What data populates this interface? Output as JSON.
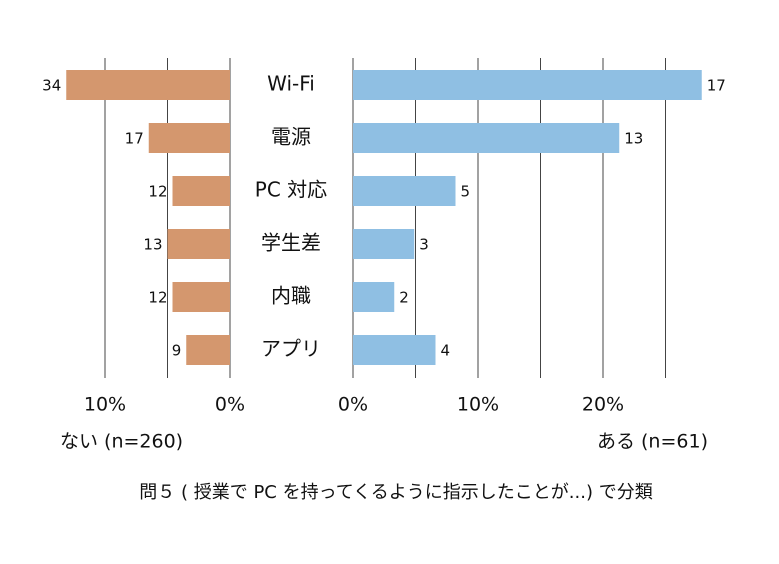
{
  "chart_data": {
    "type": "butterfly",
    "title": "問５ ( 授業で PC を持ってくるように指示したことが...) で分類",
    "categories": [
      "Wi-Fi",
      "電源",
      "PC 対応",
      "学生差",
      "内職",
      "アプリ"
    ],
    "series": [
      {
        "name": "ない (n=260)",
        "color": "#d4976e",
        "side": "left",
        "values": [
          13.1,
          6.5,
          4.6,
          5.0,
          4.6,
          3.5
        ],
        "counts": [
          34,
          17,
          12,
          13,
          12,
          9
        ],
        "xlim": [
          0,
          15
        ],
        "xticks": [
          {
            "value": 0,
            "label": "0%"
          },
          {
            "value": 10,
            "label": "10%"
          }
        ],
        "gridlines": [
          5
        ]
      },
      {
        "name": "ある (n=61)",
        "color": "#8fbfe3",
        "side": "right",
        "values": [
          27.9,
          21.3,
          8.2,
          4.9,
          3.3,
          6.6
        ],
        "counts": [
          17,
          13,
          5,
          3,
          2,
          4
        ],
        "xlim": [
          0,
          28
        ],
        "xticks": [
          {
            "value": 0,
            "label": "0%"
          },
          {
            "value": 10,
            "label": "10%"
          },
          {
            "value": 20,
            "label": "20%"
          }
        ],
        "gridlines": [
          5,
          15,
          25
        ]
      }
    ]
  }
}
